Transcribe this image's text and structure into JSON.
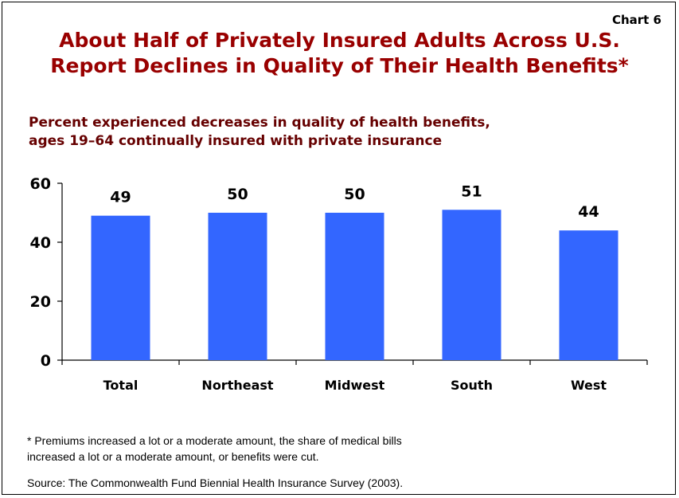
{
  "chart_number": "Chart 6",
  "title_lines": [
    "About Half of Privately Insured Adults Across U.S.",
    "Report Declines in Quality of Their Health Benefits*"
  ],
  "subtitle_lines": [
    "Percent experienced decreases in quality of health benefits,",
    "ages 19–64 continually insured with private insurance"
  ],
  "footnote_lines": [
    "* Premiums increased a lot or a moderate amount, the share of medical bills",
    "increased a lot or a moderate amount, or benefits were cut."
  ],
  "source": "Source: The Commonwealth Fund Biennial Health Insurance Survey (2003).",
  "colors": {
    "bar": "#3366FF",
    "title": "#990000",
    "subtitle": "#660000"
  },
  "chart_data": {
    "type": "bar",
    "categories": [
      "Total",
      "Northeast",
      "Midwest",
      "South",
      "West"
    ],
    "values": [
      49,
      50,
      50,
      51,
      44
    ],
    "data_labels": [
      "49",
      "50",
      "50",
      "51",
      "44"
    ],
    "yticks": [
      0,
      20,
      40,
      60
    ],
    "ylim": [
      0,
      60
    ],
    "grid": false,
    "legend": "none"
  }
}
